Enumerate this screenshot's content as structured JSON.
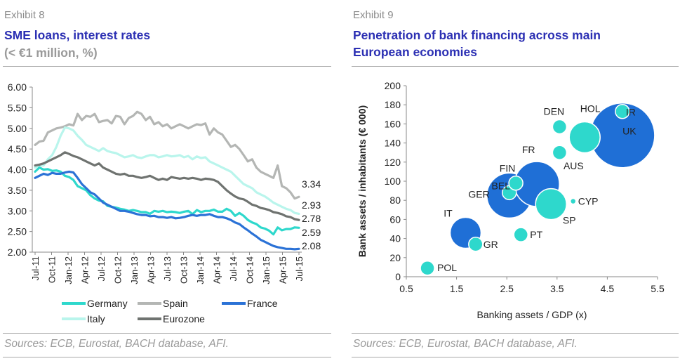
{
  "left": {
    "exhibit": "Exhibit 8",
    "title": "SME loans, interest rates",
    "subtitle": "(< €1 million, %)",
    "source": "Sources: ECB, Eurostat, BACH database, AFI."
  },
  "right": {
    "exhibit": "Exhibit 9",
    "title_line1": "Penetration of bank financing across main",
    "title_line2": "European economies",
    "source": "Sources: ECB, Eurostat, BACH database, AFI."
  },
  "chart_data": [
    {
      "type": "line",
      "ylim": [
        2.0,
        6.0
      ],
      "yticks": [
        "6.00",
        "5.50",
        "5.00",
        "4.50",
        "4.00",
        "3.50",
        "3.00",
        "2.50",
        "2.00"
      ],
      "x_tick_labels": [
        "Jul-11",
        "Oct-11",
        "Jan-12",
        "Apr-12",
        "Jul-12",
        "Oct-12",
        "Jan-13",
        "Apr-13",
        "Jul-13",
        "Oct-13",
        "Jan-14",
        "Apr-14",
        "Jul-14",
        "Oct-14",
        "Jan-15",
        "Apr-15",
        "Jul-15"
      ],
      "grid": false,
      "legend_position": "bottom",
      "series": [
        {
          "name": "Germany",
          "color": "#2ed8cc",
          "end_label": "2.59",
          "values": [
            3.95,
            4.05,
            4.0,
            4.01,
            3.97,
            3.98,
            3.95,
            3.85,
            3.82,
            3.75,
            3.6,
            3.55,
            3.5,
            3.38,
            3.3,
            3.25,
            3.23,
            3.12,
            3.1,
            3.08,
            3.05,
            3.03,
            3.0,
            3.02,
            3.0,
            2.97,
            2.97,
            2.93,
            3.0,
            2.98,
            3.0,
            2.97,
            2.98,
            2.97,
            2.95,
            2.98,
            3.0,
            2.92,
            3.02,
            2.97,
            3.0,
            3.0,
            3.03,
            2.98,
            2.98,
            3.05,
            3.0,
            2.88,
            2.95,
            2.88,
            2.78,
            2.72,
            2.68,
            2.6,
            2.57,
            2.52,
            2.43,
            2.6,
            2.53,
            2.56,
            2.56,
            2.6,
            2.59
          ]
        },
        {
          "name": "Spain",
          "color": "#b4b6b4",
          "end_label": "3.34",
          "values": [
            4.6,
            4.68,
            4.7,
            4.9,
            4.95,
            5.0,
            5.02,
            5.05,
            5.1,
            5.07,
            5.35,
            5.2,
            5.3,
            5.28,
            5.35,
            5.15,
            5.18,
            5.2,
            5.12,
            5.3,
            5.28,
            5.1,
            5.25,
            5.3,
            5.4,
            5.35,
            5.2,
            5.28,
            5.1,
            5.15,
            5.05,
            5.1,
            5.0,
            5.05,
            5.1,
            5.05,
            5.0,
            5.05,
            5.1,
            5.08,
            5.12,
            4.85,
            5.0,
            4.9,
            4.85,
            4.7,
            4.55,
            4.6,
            4.5,
            4.35,
            4.2,
            4.25,
            4.05,
            3.95,
            3.9,
            3.85,
            3.8,
            4.1,
            3.6,
            3.55,
            3.45,
            3.3,
            3.34
          ]
        },
        {
          "name": "France",
          "color": "#2b72d6",
          "end_label": "2.08",
          "values": [
            3.8,
            3.85,
            3.9,
            3.87,
            3.92,
            3.9,
            3.9,
            3.93,
            3.95,
            3.93,
            3.8,
            3.65,
            3.55,
            3.45,
            3.4,
            3.3,
            3.2,
            3.15,
            3.1,
            3.05,
            3.0,
            3.0,
            2.98,
            2.95,
            2.92,
            2.9,
            2.9,
            2.87,
            2.88,
            2.85,
            2.85,
            2.83,
            2.85,
            2.82,
            2.83,
            2.85,
            2.88,
            2.9,
            2.88,
            2.9,
            2.9,
            2.92,
            2.88,
            2.85,
            2.85,
            2.82,
            2.78,
            2.72,
            2.68,
            2.6,
            2.53,
            2.45,
            2.38,
            2.3,
            2.25,
            2.2,
            2.15,
            2.12,
            2.1,
            2.08,
            2.08,
            2.07,
            2.08
          ]
        },
        {
          "name": "Italy",
          "color": "#b9f5ec",
          "end_label": "2.93",
          "values": [
            4.05,
            4.1,
            4.1,
            4.25,
            4.35,
            4.55,
            4.82,
            5.02,
            5.0,
            4.95,
            4.82,
            4.72,
            4.6,
            4.55,
            4.5,
            4.45,
            4.52,
            4.45,
            4.42,
            4.4,
            4.35,
            4.3,
            4.32,
            4.35,
            4.3,
            4.28,
            4.32,
            4.35,
            4.35,
            4.3,
            4.32,
            4.35,
            4.32,
            4.33,
            4.35,
            4.3,
            4.33,
            4.25,
            4.32,
            4.28,
            4.3,
            4.2,
            4.15,
            4.1,
            4.05,
            4.0,
            3.95,
            3.85,
            3.75,
            3.65,
            3.6,
            3.55,
            3.45,
            3.4,
            3.35,
            3.28,
            3.2,
            3.15,
            3.1,
            3.05,
            3.02,
            2.95,
            2.93
          ]
        },
        {
          "name": "Eurozone",
          "color": "#6f7370",
          "end_label": "2.78",
          "values": [
            4.1,
            4.12,
            4.15,
            4.2,
            4.25,
            4.3,
            4.35,
            4.42,
            4.38,
            4.33,
            4.3,
            4.25,
            4.2,
            4.15,
            4.1,
            4.15,
            4.05,
            4.0,
            3.95,
            3.9,
            3.88,
            3.9,
            3.85,
            3.85,
            3.82,
            3.8,
            3.82,
            3.85,
            3.8,
            3.75,
            3.78,
            3.75,
            3.82,
            3.8,
            3.78,
            3.8,
            3.78,
            3.8,
            3.78,
            3.75,
            3.78,
            3.77,
            3.75,
            3.7,
            3.6,
            3.5,
            3.42,
            3.35,
            3.3,
            3.28,
            3.22,
            3.15,
            3.12,
            3.07,
            3.05,
            3.02,
            2.97,
            2.95,
            2.92,
            2.87,
            2.85,
            2.8,
            2.78
          ]
        }
      ]
    },
    {
      "type": "scatter",
      "xlabel": "Banking assets / GDP (x)",
      "ylabel": "Bank assets / inhabitants (€ 000)",
      "xlim": [
        0.5,
        5.5
      ],
      "ylim": [
        0,
        200
      ],
      "xticks": [
        "0.5",
        "1.5",
        "2.5",
        "3.5",
        "4.5",
        "5.5"
      ],
      "yticks": [
        "0",
        "20",
        "40",
        "60",
        "80",
        "100",
        "120",
        "140",
        "160",
        "180",
        "200"
      ],
      "grid": false,
      "points": [
        {
          "label": "POL",
          "x": 0.92,
          "y": 9,
          "size": "small",
          "color": "#2ed8cc"
        },
        {
          "label": "GR",
          "x": 1.88,
          "y": 34,
          "size": "small",
          "color": "#2ed8cc"
        },
        {
          "label": "IT",
          "x": 1.68,
          "y": 46,
          "size": "medium",
          "color": "#1f6fd6"
        },
        {
          "label": "PT",
          "x": 2.78,
          "y": 44,
          "size": "small",
          "color": "#2ed8cc"
        },
        {
          "label": "GER",
          "x": 2.55,
          "y": 85,
          "size": "large",
          "color": "#1f6fd6"
        },
        {
          "label": "BEL",
          "x": 2.55,
          "y": 88,
          "size": "small",
          "color": "#2ed8cc"
        },
        {
          "label": "FIN",
          "x": 2.68,
          "y": 98,
          "size": "small",
          "color": "#2ed8cc"
        },
        {
          "label": "FR",
          "x": 3.1,
          "y": 97,
          "size": "large",
          "color": "#1f6fd6"
        },
        {
          "label": "SP",
          "x": 3.38,
          "y": 76,
          "size": "medium",
          "color": "#2ed8cc"
        },
        {
          "label": "CYP",
          "x": 3.82,
          "y": 79,
          "size": "tiny",
          "color": "#2ed8cc"
        },
        {
          "label": "AUS",
          "x": 3.55,
          "y": 130,
          "size": "small",
          "color": "#2ed8cc"
        },
        {
          "label": "DEN",
          "x": 3.55,
          "y": 157,
          "size": "small",
          "color": "#2ed8cc"
        },
        {
          "label": "HOL",
          "x": 4.05,
          "y": 146,
          "size": "medium",
          "color": "#2ed8cc"
        },
        {
          "label": "UK",
          "x": 4.8,
          "y": 148,
          "size": "xlarge",
          "color": "#1f6fd6"
        },
        {
          "label": "IR",
          "x": 4.8,
          "y": 173,
          "size": "small",
          "color": "#2ed8cc"
        }
      ]
    }
  ]
}
